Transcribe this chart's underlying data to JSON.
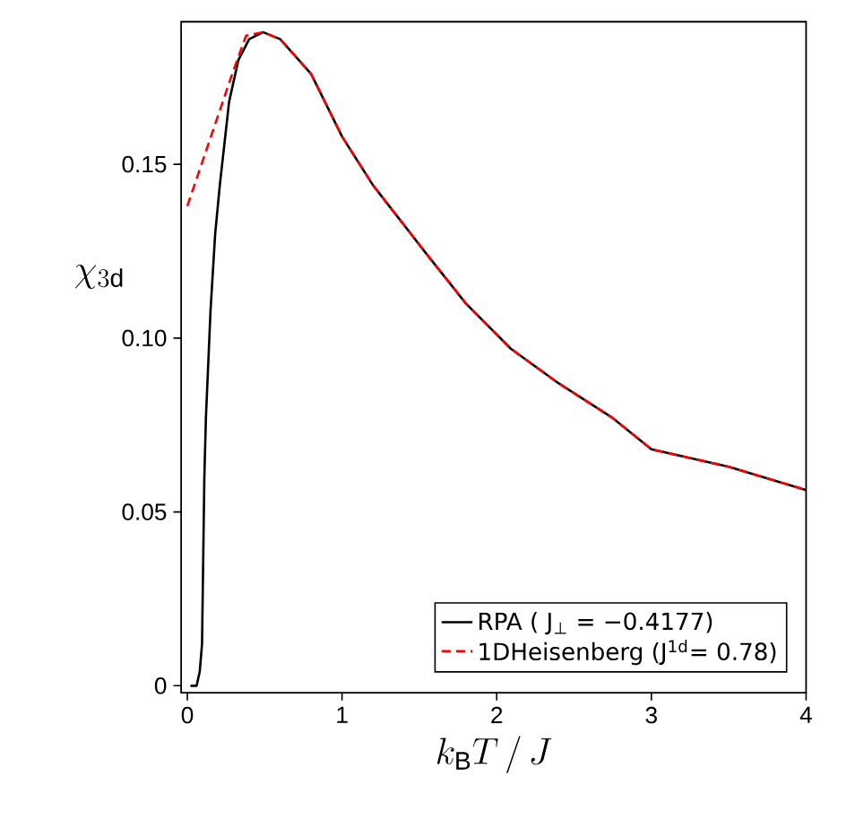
{
  "chart_data": {
    "type": "line",
    "xlabel": "k_{\\mathrm{B}}T\\,/\\,J",
    "ylabel": "\\chi_{3\\mathrm{d}}",
    "xlim": [
      -0.04,
      4.0
    ],
    "ylim": [
      -0.002,
      0.191
    ],
    "xticks": [
      0,
      1,
      2,
      3,
      4
    ],
    "yticks": [
      0,
      0.05,
      {
        "value": 0.1,
        "label": "0.10"
      },
      0.15
    ],
    "legend": "bottom right",
    "grid": false,
    "marker": "none",
    "series": [
      {
        "name": "RPA ( J$_{⊥}$ = −0.4177)",
        "color": "#000000",
        "line_style": "solid",
        "x": [
          0.02,
          0.06,
          0.08,
          0.095,
          0.11,
          0.12,
          0.15,
          0.18,
          0.21,
          0.27,
          0.33,
          0.4,
          0.49,
          0.6,
          0.7,
          0.8,
          1.0,
          1.2,
          1.55,
          1.8,
          2.09,
          2.4,
          2.75,
          3.0,
          3.5,
          4.0
        ],
        "values": [
          0,
          0.0,
          0.004,
          0.012,
          0.06,
          0.077,
          0.108,
          0.13,
          0.144,
          0.168,
          0.18,
          0.186,
          0.188,
          0.186,
          0.181,
          0.176,
          0.158,
          0.144,
          0.124,
          0.11,
          0.097,
          0.087,
          0.077,
          0.068,
          0.063,
          0.0563
        ]
      },
      {
        "name": "1DHeisenberg (J$^{1d}$= 0.78)",
        "color": "#ff0000",
        "line_style": "dashed",
        "x": [
          0.0,
          0.13,
          0.29,
          0.38,
          0.49,
          0.6,
          0.7,
          0.8,
          1.0,
          1.2,
          1.55,
          1.8,
          2.09,
          2.4,
          2.75,
          3.0,
          3.5,
          4.0
        ],
        "values": [
          0.138,
          0.155,
          0.176,
          0.187,
          0.188,
          0.186,
          0.181,
          0.176,
          0.158,
          0.144,
          0.124,
          0.11,
          0.097,
          0.087,
          0.077,
          0.068,
          0.063,
          0.0563
        ]
      }
    ]
  }
}
